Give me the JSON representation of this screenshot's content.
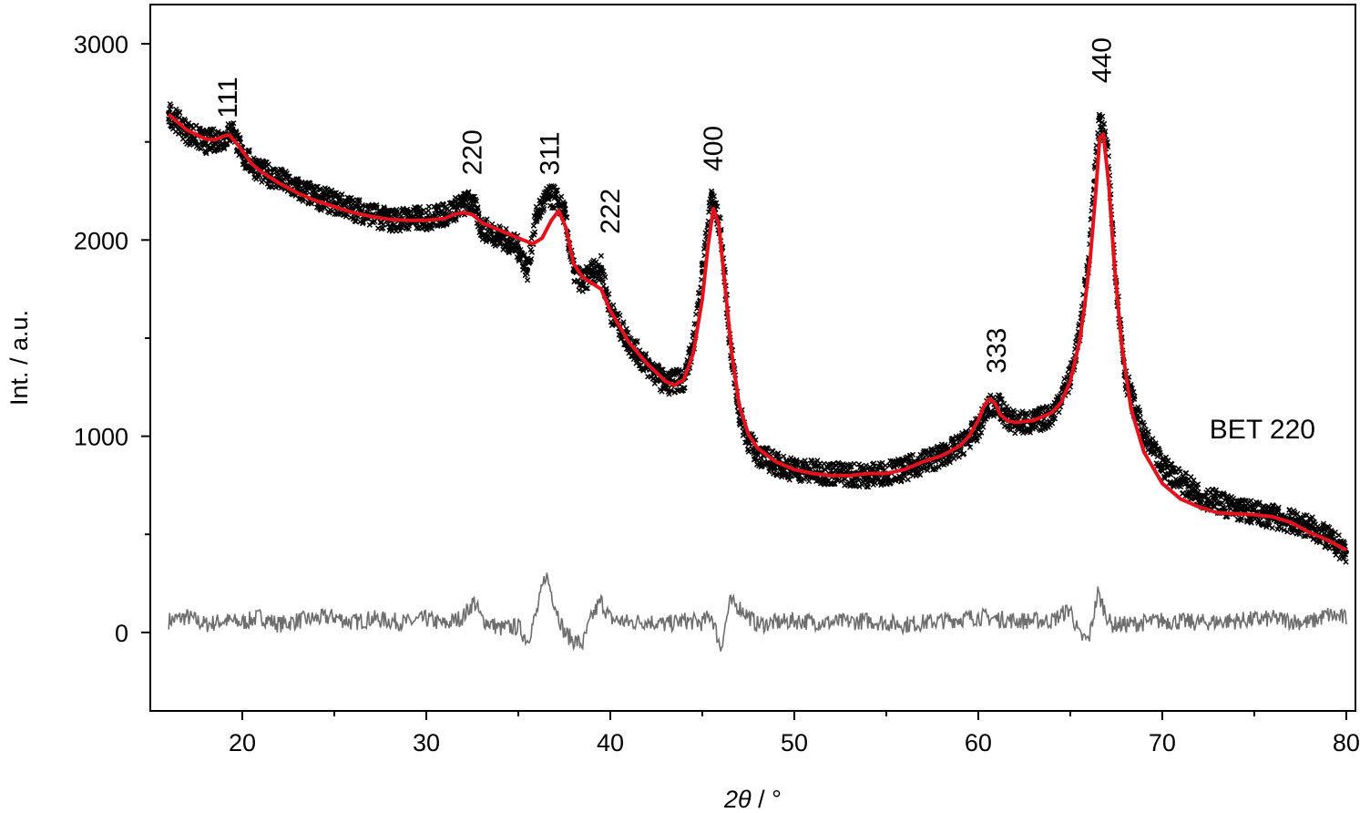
{
  "chart_data": {
    "type": "scatter",
    "title": "",
    "xlabel_symbol": "2θ",
    "xlabel_unit": " / °",
    "ylabel": "Int. / a.u.",
    "xlim": [
      15,
      80.5
    ],
    "ylim": [
      -400,
      3200
    ],
    "xticks": [
      20,
      30,
      40,
      50,
      60,
      70,
      80
    ],
    "yticks": [
      0,
      1000,
      2000,
      3000
    ],
    "annotation": "BET 220",
    "colors": {
      "observed": "#000000",
      "fit": "#e3121b",
      "difference": "#6e6e6e"
    },
    "grid": false,
    "legend": "none",
    "peaks": [
      {
        "label": "111",
        "x": 19.2,
        "y": 2620
      },
      {
        "label": "220",
        "x": 32.5,
        "y": 2330
      },
      {
        "label": "311",
        "x": 36.7,
        "y": 2330
      },
      {
        "label": "222",
        "x": 40.0,
        "y": 2030
      },
      {
        "label": "400",
        "x": 45.6,
        "y": 2350
      },
      {
        "label": "333",
        "x": 61.0,
        "y": 1320
      },
      {
        "label": "440",
        "x": 66.7,
        "y": 2800
      }
    ],
    "series": [
      {
        "style": "observed-points",
        "x": [
          16,
          17,
          18,
          19,
          19.5,
          20,
          21,
          22,
          23,
          24,
          25,
          26,
          27,
          28,
          29,
          30,
          31,
          32,
          32.5,
          33,
          34,
          35,
          35.5,
          36,
          36.5,
          37,
          37.5,
          38,
          38.5,
          39,
          39.5,
          40,
          41,
          42,
          43,
          44,
          44.5,
          45,
          45.5,
          46,
          46.5,
          47,
          47.5,
          48,
          49,
          50,
          52,
          54,
          56,
          57,
          58,
          59,
          60,
          60.5,
          61,
          61.5,
          62,
          63,
          64,
          65,
          65.5,
          66,
          66.3,
          66.6,
          67,
          67.5,
          68,
          69,
          70,
          72,
          74,
          76,
          78,
          79,
          80
        ],
        "y": [
          2650,
          2550,
          2500,
          2520,
          2560,
          2430,
          2350,
          2310,
          2260,
          2220,
          2190,
          2160,
          2130,
          2100,
          2110,
          2110,
          2130,
          2180,
          2200,
          2060,
          2020,
          1960,
          1850,
          2130,
          2210,
          2220,
          2140,
          1840,
          1780,
          1840,
          1860,
          1640,
          1480,
          1360,
          1270,
          1290,
          1460,
          1840,
          2230,
          2050,
          1480,
          1120,
          980,
          910,
          860,
          830,
          810,
          800,
          830,
          870,
          900,
          950,
          1040,
          1140,
          1170,
          1100,
          1070,
          1070,
          1110,
          1300,
          1520,
          1900,
          2300,
          2620,
          2480,
          1780,
          1300,
          1000,
          850,
          700,
          630,
          590,
          540,
          480,
          410
        ]
      },
      {
        "style": "fit-line",
        "x": [
          16,
          17,
          18,
          18.5,
          19,
          19.3,
          19.8,
          20.5,
          21,
          22,
          23,
          24,
          25,
          26,
          27,
          28,
          29,
          30,
          31,
          31.5,
          32,
          32.5,
          33,
          34,
          35,
          35.8,
          36.3,
          36.8,
          37.2,
          37.6,
          38,
          38.5,
          39,
          39.5,
          40,
          41,
          42,
          43,
          43.5,
          44,
          44.5,
          45,
          45.3,
          45.6,
          45.9,
          46.2,
          46.6,
          47,
          47.5,
          48,
          49,
          50,
          51,
          52,
          53,
          54,
          55,
          56,
          57,
          58,
          59,
          59.5,
          60,
          60.3,
          60.6,
          60.9,
          61.2,
          61.6,
          62,
          63,
          64,
          64.5,
          65,
          65.5,
          65.8,
          66.1,
          66.4,
          66.6,
          66.8,
          67.1,
          67.4,
          67.8,
          68.3,
          69,
          70,
          71,
          72,
          73,
          74,
          75,
          76,
          77,
          78,
          79,
          80
        ],
        "y": [
          2640,
          2560,
          2515,
          2510,
          2530,
          2535,
          2480,
          2390,
          2350,
          2290,
          2240,
          2200,
          2170,
          2140,
          2120,
          2105,
          2100,
          2100,
          2110,
          2130,
          2140,
          2130,
          2090,
          2050,
          2010,
          1980,
          2010,
          2100,
          2150,
          2060,
          1880,
          1810,
          1780,
          1750,
          1640,
          1480,
          1370,
          1280,
          1260,
          1290,
          1420,
          1700,
          1960,
          2160,
          2080,
          1800,
          1420,
          1160,
          1010,
          940,
          870,
          830,
          810,
          800,
          800,
          810,
          810,
          830,
          870,
          900,
          950,
          1000,
          1080,
          1150,
          1190,
          1170,
          1110,
          1080,
          1070,
          1080,
          1120,
          1170,
          1280,
          1480,
          1680,
          1920,
          2260,
          2520,
          2540,
          2280,
          1870,
          1460,
          1140,
          920,
          760,
          680,
          640,
          610,
          605,
          600,
          590,
          560,
          510,
          470,
          420
        ]
      },
      {
        "style": "difference-line",
        "x": [
          16,
          17,
          18,
          19,
          20,
          21,
          22,
          23,
          24,
          25,
          26,
          27,
          28,
          29,
          30,
          31,
          32,
          32.6,
          33,
          34,
          35,
          35.5,
          36,
          36.5,
          37,
          37.5,
          38,
          38.5,
          39,
          39.5,
          40,
          41,
          42,
          43,
          44,
          45,
          45.5,
          46,
          46.5,
          47,
          48,
          50,
          52,
          54,
          56,
          58,
          60,
          62,
          64,
          65,
          65.5,
          66,
          66.5,
          66.8,
          67.2,
          68,
          70,
          72,
          74,
          76,
          78,
          79,
          79.5,
          80
        ],
        "y": [
          60,
          80,
          40,
          60,
          50,
          80,
          40,
          60,
          70,
          80,
          50,
          70,
          60,
          50,
          70,
          40,
          80,
          160,
          70,
          20,
          30,
          -40,
          100,
          300,
          140,
          0,
          -40,
          -60,
          80,
          160,
          70,
          50,
          60,
          40,
          60,
          50,
          90,
          -80,
          150,
          130,
          40,
          60,
          50,
          60,
          40,
          60,
          80,
          60,
          60,
          120,
          -20,
          -40,
          200,
          130,
          40,
          40,
          60,
          50,
          60,
          70,
          50,
          90,
          80,
          70
        ]
      }
    ]
  }
}
